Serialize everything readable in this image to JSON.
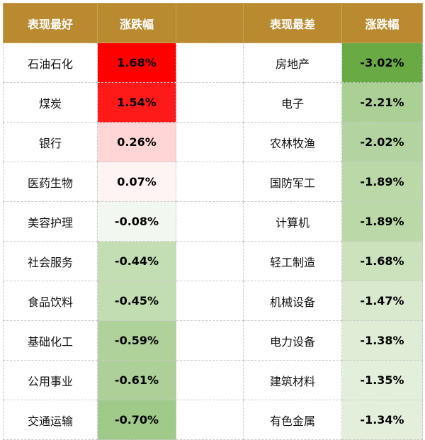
{
  "header": {
    "best_label": "表现最好",
    "best_change_label": "涨跌幅",
    "worst_label": "表现最差",
    "worst_change_label": "涨跌幅"
  },
  "best": [
    {
      "name": "石油石化",
      "change": "1.68%",
      "color": "#ff0000"
    },
    {
      "name": "煤炭",
      "change": "1.54%",
      "color": "#ff1a1a"
    },
    {
      "name": "银行",
      "change": "0.26%",
      "color": "#ffd5d5"
    },
    {
      "name": "医药生物",
      "change": "0.07%",
      "color": "#fff4f4"
    },
    {
      "name": "美容护理",
      "change": "-0.08%",
      "color": "#f2f8ef"
    },
    {
      "name": "社会服务",
      "change": "-0.44%",
      "color": "#c4deb3"
    },
    {
      "name": "食品饮料",
      "change": "-0.45%",
      "color": "#c3ddb2"
    },
    {
      "name": "基础化工",
      "change": "-0.59%",
      "color": "#afd29b"
    },
    {
      "name": "公用事业",
      "change": "-0.61%",
      "color": "#acd097"
    },
    {
      "name": "交通运输",
      "change": "-0.70%",
      "color": "#a0ca89"
    }
  ],
  "worst": [
    {
      "name": "房地产",
      "change": "-3.02%",
      "color": "#6aaa45"
    },
    {
      "name": "电子",
      "change": "-2.21%",
      "color": "#abd096"
    },
    {
      "name": "农林牧渔",
      "change": "-2.02%",
      "color": "#b3d4a0"
    },
    {
      "name": "国防军工",
      "change": "-1.89%",
      "color": "#bad8a8"
    },
    {
      "name": "计算机",
      "change": "-1.89%",
      "color": "#bad8a8"
    },
    {
      "name": "轻工制造",
      "change": "-1.68%",
      "color": "#cbe2bd"
    },
    {
      "name": "机械设备",
      "change": "-1.47%",
      "color": "#d9e9ce"
    },
    {
      "name": "电力设备",
      "change": "-1.38%",
      "color": "#dfedd6"
    },
    {
      "name": "建筑材料",
      "change": "-1.35%",
      "color": "#e2efda"
    },
    {
      "name": "有色金属",
      "change": "-1.34%",
      "color": "#e3efdb"
    }
  ]
}
